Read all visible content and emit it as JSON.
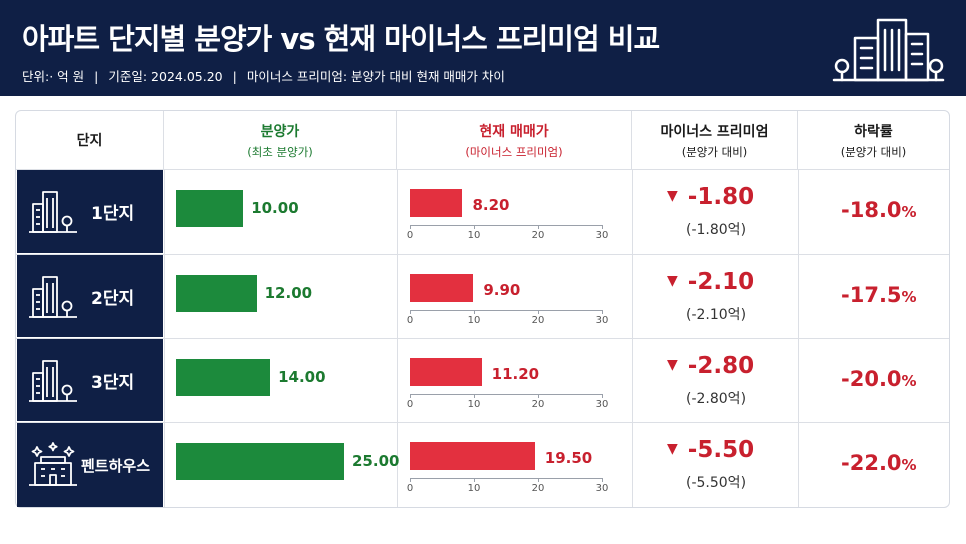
{
  "header": {
    "title": "아파트 단지별 분양가 vs 현재 마이너스 프리미엄 비교",
    "unit": "단위:· 억 원",
    "date": "기준일: 2024.05.20",
    "definition": "마이너스 프리미엄: 분양가 대비 현재 매매가 차이"
  },
  "columns": {
    "complex": "단지",
    "presale": "분양가",
    "presale_sub": "(최초 분양가)",
    "current": "현재 매매가",
    "current_sub": "(마이너스 프리미엄)",
    "premium": "마이너스 프리미엄",
    "premium_sub": "(분양가 대비)",
    "rate": "하락률",
    "rate_sub": "(분양가 대비)"
  },
  "colors": {
    "navy": "#0f1f45",
    "green": "#1c8a3c",
    "red": "#e3303f"
  },
  "chart_data": {
    "type": "table",
    "rows": [
      {
        "name": "1단지",
        "presale": 10.0,
        "presale_label": "10.00",
        "current": 8.2,
        "current_label": "8.20",
        "premium": "-1.80",
        "premium_sub": "(-1.80억)",
        "rate": "-18.0",
        "icon": "building-icon"
      },
      {
        "name": "2단지",
        "presale": 12.0,
        "presale_label": "12.00",
        "current": 9.9,
        "current_label": "9.90",
        "premium": "-2.10",
        "premium_sub": "(-2.10억)",
        "rate": "-17.5",
        "icon": "building-icon"
      },
      {
        "name": "3단지",
        "presale": 14.0,
        "presale_label": "14.00",
        "current": 11.2,
        "current_label": "11.20",
        "premium": "-2.80",
        "premium_sub": "(-2.80억)",
        "rate": "-20.0",
        "icon": "building-icon"
      },
      {
        "name": "펜트하우스",
        "presale": 25.0,
        "presale_label": "25.00",
        "current": 19.5,
        "current_label": "19.50",
        "premium": "-5.50",
        "premium_sub": "(-5.50억)",
        "rate": "-22.0",
        "icon": "penthouse-icon"
      }
    ],
    "current_axis": {
      "ticks": [
        "0",
        "10",
        "20",
        "30"
      ],
      "max": 30
    },
    "presale_axis_max": 25,
    "percent_symbol": "%",
    "down_symbol": "▼"
  }
}
